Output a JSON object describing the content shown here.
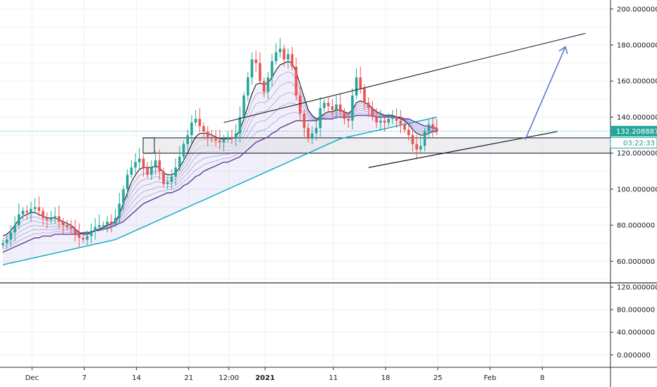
{
  "chart_data": {
    "type": "candlestick",
    "grid": true,
    "main_pane": {
      "y_axis_ticks": [
        "200.000000",
        "180.000000",
        "160.000000",
        "140.000000",
        "120.000000",
        "100.000000",
        "80.000000",
        "60.000000"
      ],
      "y_axis_values": [
        200,
        180,
        160,
        140,
        120,
        100,
        80,
        60
      ],
      "ylim": [
        48,
        205
      ],
      "last_price": "132.208887",
      "last_price_value": 132.2,
      "countdown": "03:22:33",
      "support_zone": [
        120,
        128.5
      ],
      "series": [
        {
          "name": "price",
          "values": [
            70,
            72,
            76,
            80,
            86,
            88,
            87,
            89,
            90,
            88,
            84,
            83,
            84,
            85,
            82,
            80,
            79,
            78,
            75,
            73,
            72,
            74,
            77,
            79,
            80,
            80,
            82,
            81,
            84,
            92,
            100,
            108,
            112,
            115,
            117,
            112,
            108,
            112,
            116,
            110,
            103,
            104,
            107,
            112,
            118,
            125,
            130,
            137,
            139,
            135,
            132,
            129,
            128,
            127,
            126,
            128,
            129,
            128,
            131,
            140,
            152,
            162,
            172,
            170,
            160,
            154,
            162,
            171,
            176,
            178,
            172,
            175,
            168,
            152,
            142,
            134,
            128,
            131,
            134,
            145,
            148,
            146,
            144,
            147,
            143,
            139,
            138,
            152,
            162,
            156,
            148,
            145,
            140,
            137,
            138,
            137,
            139,
            140,
            138,
            136,
            133,
            130,
            125,
            122,
            124,
            132,
            136,
            134,
            132
          ]
        },
        {
          "name": "ema_fast",
          "values": [
            74,
            75,
            77,
            80,
            83,
            85,
            86,
            87,
            87,
            86,
            85,
            84,
            84,
            84,
            83,
            82,
            81,
            80,
            78,
            76,
            75,
            75,
            76,
            77,
            78,
            79,
            80,
            81,
            82,
            86,
            92,
            98,
            104,
            108,
            111,
            112,
            112,
            112,
            113,
            112,
            109,
            108,
            108,
            109,
            112,
            116,
            120,
            125,
            129,
            131,
            131,
            131,
            130,
            129,
            128,
            128,
            128,
            128,
            129,
            133,
            139,
            146,
            153,
            158,
            159,
            158,
            159,
            162,
            166,
            169,
            170,
            171,
            170,
            165,
            158,
            151,
            144,
            141,
            139,
            140,
            142,
            143,
            143,
            144,
            144,
            143,
            142,
            144,
            148,
            149,
            148,
            147,
            145,
            143,
            142,
            141,
            141,
            141,
            140,
            139,
            138,
            136,
            133,
            131,
            130,
            130,
            131,
            132,
            132
          ]
        },
        {
          "name": "ema_slow",
          "values": [
            65,
            66,
            67,
            68,
            69,
            70,
            71,
            72,
            73,
            73,
            74,
            74,
            74,
            75,
            75,
            75,
            75,
            75,
            75,
            75,
            76,
            76,
            76,
            77,
            77,
            78,
            78,
            79,
            80,
            81,
            82,
            84,
            86,
            88,
            90,
            92,
            93,
            94,
            95,
            96,
            97,
            98,
            98,
            99,
            100,
            102,
            103,
            105,
            107,
            108,
            110,
            111,
            112,
            113,
            114,
            115,
            115,
            116,
            117,
            118,
            120,
            122,
            124,
            126,
            127,
            128,
            129,
            131,
            132,
            134,
            135,
            136,
            137,
            138,
            138,
            138,
            138,
            138,
            138,
            139,
            139,
            139,
            139,
            140,
            140,
            140,
            140,
            140,
            141,
            141,
            141,
            141,
            141,
            140,
            140,
            140,
            140,
            140,
            140,
            140,
            139,
            139,
            138,
            137,
            136,
            135,
            135,
            134,
            134
          ]
        },
        {
          "name": "ema_200",
          "values": [
            58,
            58.5,
            59,
            59.5,
            60,
            60.5,
            61,
            61.5,
            62,
            62.5,
            63,
            63.5,
            64,
            64.5,
            65,
            65.5,
            66,
            66.5,
            67,
            67.5,
            68,
            68.5,
            69,
            69.5,
            70,
            70.5,
            71,
            71.5,
            72,
            73,
            74,
            75,
            76,
            77,
            78,
            79,
            80,
            81,
            82,
            83,
            84,
            85,
            86,
            87,
            88,
            89,
            90,
            91,
            92,
            93,
            94,
            95,
            96,
            97,
            98,
            99,
            100,
            101,
            102,
            103,
            104,
            105,
            106,
            107,
            108,
            109,
            110,
            111,
            112,
            113,
            114,
            115,
            116,
            117,
            118,
            119,
            120,
            121,
            122,
            123,
            124,
            125,
            126,
            127,
            128,
            128.5,
            129,
            129.5,
            130,
            130.5,
            131,
            131.5,
            132,
            132.5,
            133,
            133.5,
            134,
            134.5,
            135,
            135.5,
            136,
            136.5,
            137,
            137.5,
            138,
            138.5,
            139,
            139.5,
            140
          ]
        }
      ]
    },
    "lower_pane": {
      "y_axis_ticks": [
        "120.000000",
        "80.000000",
        "40.000000",
        "0.000000"
      ],
      "y_axis_values": [
        120,
        80,
        40,
        0
      ],
      "ylim": [
        -22,
        125
      ]
    },
    "x_axis_ticks": [
      {
        "label": "Dec",
        "bold": false,
        "index": 2
      },
      {
        "label": "7",
        "bold": false,
        "index": 15
      },
      {
        "label": "14",
        "bold": false,
        "index": 28
      },
      {
        "label": "21",
        "bold": false,
        "index": 41
      },
      {
        "label": "12:00",
        "bold": false,
        "index": 51
      },
      {
        "label": "2021",
        "bold": true,
        "index": 60
      },
      {
        "label": "11",
        "bold": false,
        "index": 77
      },
      {
        "label": "18",
        "bold": false,
        "index": 90
      },
      {
        "label": "25",
        "bold": false,
        "index": 103
      },
      {
        "label": "Feb",
        "bold": false,
        "index": 116
      },
      {
        "label": "8",
        "bold": false,
        "index": 129
      }
    ],
    "colors": {
      "up": "#26a69a",
      "down": "#ef5350",
      "ema_fast": "#131722",
      "ema_slow": "#5e3c99",
      "ema_200": "#00acc1",
      "ribbon": "#9c8fd1",
      "projection_arrow": "#5c7cc8",
      "last_price_badge": "#26a69a",
      "grid": "#eef0f3",
      "price_line": "#26a69a"
    }
  }
}
